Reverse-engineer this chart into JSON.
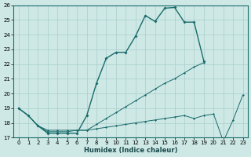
{
  "xlabel": "Humidex (Indice chaleur)",
  "x_ticks": [
    0,
    1,
    2,
    3,
    4,
    5,
    6,
    7,
    8,
    9,
    10,
    11,
    12,
    13,
    14,
    15,
    16,
    17,
    18,
    19,
    20,
    21,
    22,
    23
  ],
  "ylim": [
    17,
    26
  ],
  "xlim": [
    -0.5,
    23.5
  ],
  "yticks": [
    17,
    18,
    19,
    20,
    21,
    22,
    23,
    24,
    25,
    26
  ],
  "background_color": "#cde8e5",
  "grid_color": "#aacfcc",
  "line_color": "#1a6b6b",
  "series": [
    {
      "x": [
        0,
        1,
        2,
        3,
        4,
        5,
        6,
        7,
        8,
        9,
        10,
        11,
        12,
        13,
        14,
        15,
        16,
        17,
        18,
        19
      ],
      "y": [
        19,
        18.5,
        17.8,
        17.3,
        17.3,
        17.3,
        17.3,
        18.5,
        20.7,
        22.4,
        22.8,
        22.8,
        23.9,
        25.3,
        24.9,
        25.8,
        25.85,
        24.85,
        24.85,
        22.2
      ]
    },
    {
      "x": [
        0,
        1,
        2,
        3,
        4,
        5,
        6,
        7,
        8,
        9,
        10,
        11,
        12,
        13,
        14,
        15,
        16,
        17,
        18,
        19
      ],
      "y": [
        19,
        18.5,
        17.8,
        17.5,
        17.5,
        17.5,
        17.5,
        17.5,
        17.9,
        18.3,
        18.7,
        19.1,
        19.5,
        19.9,
        20.3,
        20.7,
        21.0,
        21.4,
        21.8,
        22.1
      ]
    },
    {
      "x": [
        0,
        1,
        2,
        3,
        4,
        5,
        6,
        7,
        8,
        9,
        10,
        11,
        12,
        13,
        14,
        15,
        16,
        17,
        18,
        19,
        20,
        21,
        22,
        23
      ],
      "y": [
        19,
        18.5,
        17.8,
        17.4,
        17.4,
        17.4,
        17.5,
        17.5,
        17.6,
        17.7,
        17.8,
        17.9,
        18.0,
        18.1,
        18.2,
        18.3,
        18.4,
        18.5,
        18.3,
        18.5,
        18.6,
        16.75,
        18.2,
        19.9
      ]
    }
  ]
}
